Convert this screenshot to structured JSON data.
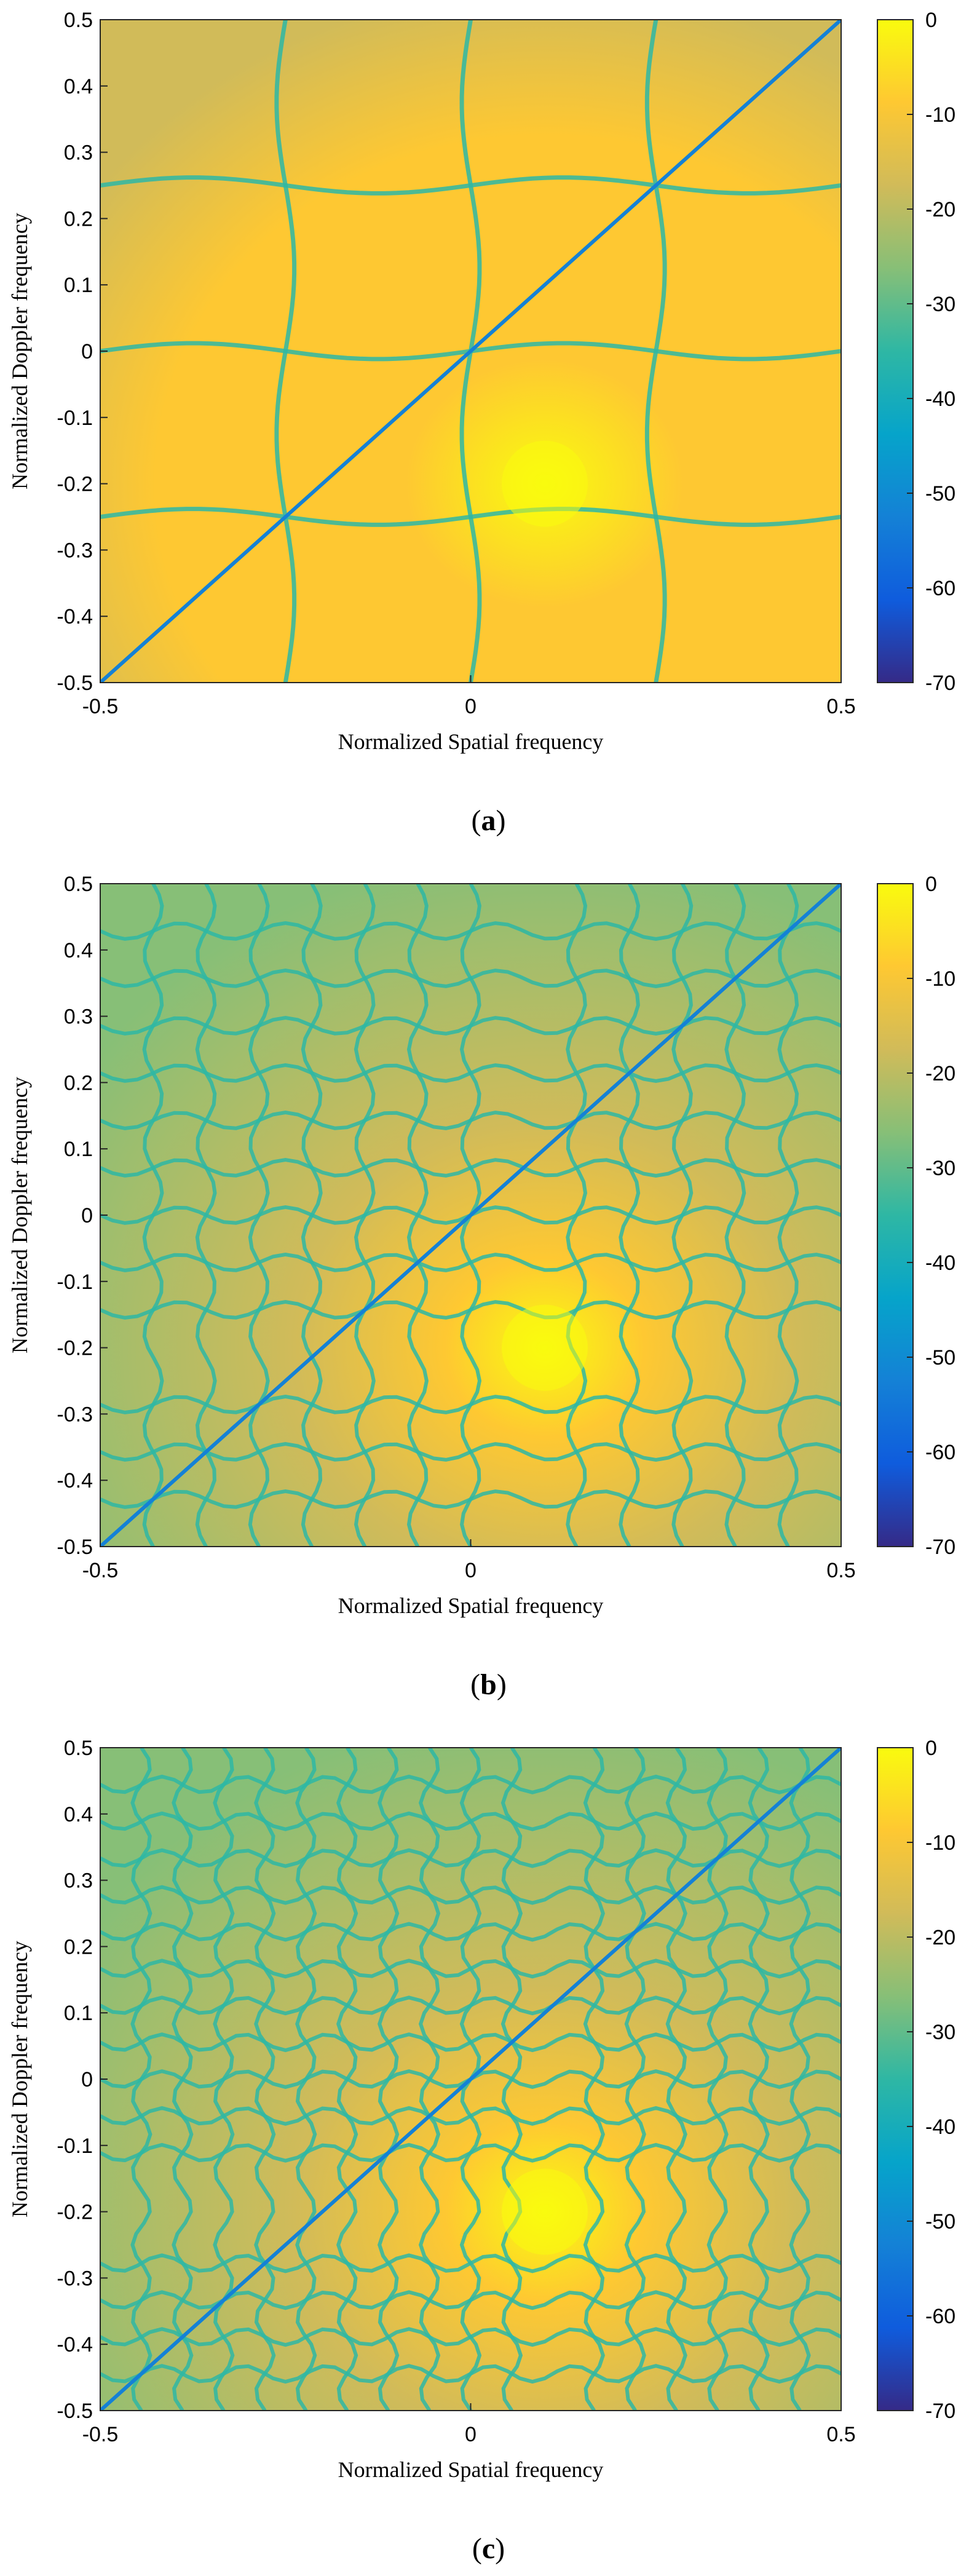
{
  "figure": {
    "colormap": [
      "#352a87",
      "#0f5cdd",
      "#1481d6",
      "#06a4ca",
      "#2eb7a4",
      "#87bf77",
      "#d1bb59",
      "#fec832",
      "#f9fb0e"
    ],
    "panels": [
      {
        "label_open": "(",
        "label_letter": "a",
        "label_close": ")"
      },
      {
        "label_open": "(",
        "label_letter": "b",
        "label_close": ")"
      },
      {
        "label_open": "(",
        "label_letter": "c",
        "label_close": ")"
      }
    ]
  },
  "chart_data": [
    {
      "type": "heatmap",
      "panel": "a",
      "xlabel": "Normalized Spatial frequency",
      "ylabel": "Normalized Doppler frequency",
      "xlim": [
        -0.5,
        0.5
      ],
      "ylim": [
        -0.5,
        0.5
      ],
      "x_ticks": [
        "-0.5",
        "0",
        "0.5"
      ],
      "y_ticks": [
        "0.5",
        "0.4",
        "0.3",
        "0.2",
        "0.1",
        "0",
        "-0.1",
        "-0.2",
        "-0.3",
        "-0.4",
        "-0.5"
      ],
      "colorbar_range": [
        -70,
        0
      ],
      "colorbar_ticks": [
        "0",
        "-10",
        "-20",
        "-30",
        "-40",
        "-50",
        "-60",
        "-70"
      ],
      "peak": {
        "x": 0.1,
        "y": -0.2,
        "value": 0
      },
      "clutter_ridge": {
        "from": [
          -0.5,
          -0.5
        ],
        "to": [
          0.5,
          0.5
        ]
      }
    },
    {
      "type": "heatmap",
      "panel": "b",
      "xlabel": "Normalized Spatial frequency",
      "ylabel": "Normalized Doppler frequency",
      "xlim": [
        -0.5,
        0.5
      ],
      "ylim": [
        -0.5,
        0.5
      ],
      "x_ticks": [
        "-0.5",
        "0",
        "0.5"
      ],
      "y_ticks": [
        "0.5",
        "0.4",
        "0.3",
        "0.2",
        "0.1",
        "0",
        "-0.1",
        "-0.2",
        "-0.3",
        "-0.4",
        "-0.5"
      ],
      "colorbar_range": [
        -70,
        0
      ],
      "colorbar_ticks": [
        "0",
        "-10",
        "-20",
        "-30",
        "-40",
        "-50",
        "-60",
        "-70"
      ],
      "peak": {
        "x": 0.1,
        "y": -0.2,
        "value": 0
      },
      "clutter_ridge": {
        "from": [
          -0.5,
          -0.5
        ],
        "to": [
          0.5,
          0.5
        ]
      }
    },
    {
      "type": "heatmap",
      "panel": "c",
      "xlabel": "Normalized Spatial frequency",
      "ylabel": "Normalized Doppler frequency",
      "xlim": [
        -0.5,
        0.5
      ],
      "ylim": [
        -0.5,
        0.5
      ],
      "x_ticks": [
        "-0.5",
        "0",
        "0.5"
      ],
      "y_ticks": [
        "0.5",
        "0.4",
        "0.3",
        "0.2",
        "0.1",
        "0",
        "-0.1",
        "-0.2",
        "-0.3",
        "-0.4",
        "-0.5"
      ],
      "colorbar_range": [
        -70,
        0
      ],
      "colorbar_ticks": [
        "0",
        "-10",
        "-20",
        "-30",
        "-40",
        "-50",
        "-60",
        "-70"
      ],
      "peak": {
        "x": 0.1,
        "y": -0.2,
        "value": 0
      },
      "clutter_ridge": {
        "from": [
          -0.5,
          -0.5
        ],
        "to": [
          0.5,
          0.5
        ]
      }
    }
  ]
}
